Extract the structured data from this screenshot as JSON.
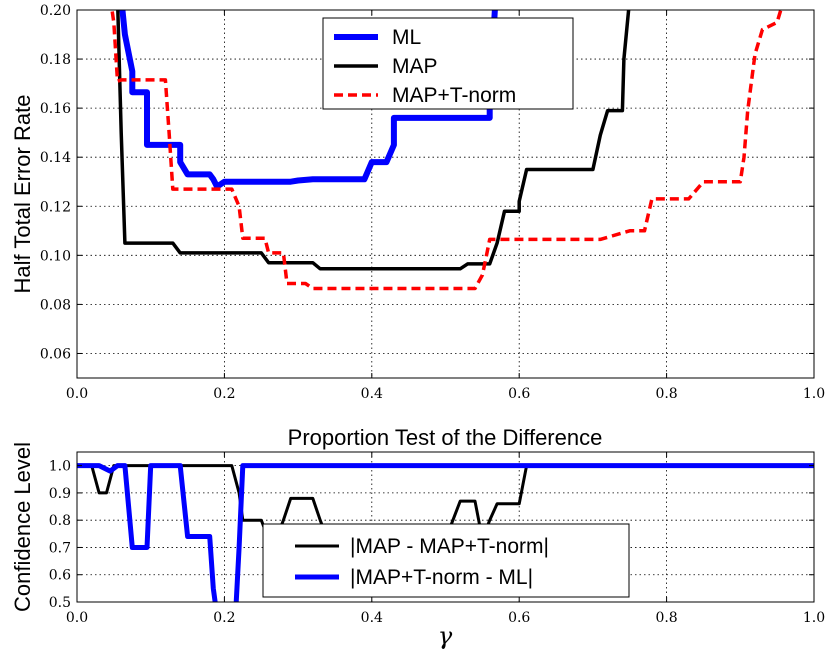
{
  "chart_data": [
    {
      "type": "line",
      "title": "",
      "xlabel": "",
      "ylabel": "Half Total Error Rate",
      "xlim": [
        0.0,
        1.0
      ],
      "ylim": [
        0.05,
        0.2
      ],
      "grid": true,
      "legend_position": "top-center",
      "xticks": [
        "0.0",
        "0.2",
        "0.4",
        "0.6",
        "0.8",
        "1.0"
      ],
      "yticks": [
        "0.06",
        "0.08",
        "0.10",
        "0.12",
        "0.14",
        "0.16",
        "0.18",
        "0.20"
      ],
      "series": [
        {
          "name": "ML",
          "color": "#0000ff",
          "style": "solid",
          "width": 6,
          "x": [
            0.06,
            0.065,
            0.075,
            0.075,
            0.095,
            0.095,
            0.115,
            0.13,
            0.14,
            0.14,
            0.15,
            0.17,
            0.18,
            0.185,
            0.19,
            0.2,
            0.22,
            0.24,
            0.26,
            0.28,
            0.29,
            0.3,
            0.32,
            0.36,
            0.39,
            0.4,
            0.41,
            0.42,
            0.43,
            0.43,
            0.56,
            0.56,
            0.565,
            0.568
          ],
          "y": [
            0.205,
            0.19,
            0.175,
            0.1665,
            0.1665,
            0.145,
            0.145,
            0.145,
            0.145,
            0.138,
            0.133,
            0.133,
            0.133,
            0.131,
            0.128,
            0.13,
            0.13,
            0.13,
            0.13,
            0.13,
            0.13,
            0.1305,
            0.131,
            0.131,
            0.131,
            0.138,
            0.138,
            0.138,
            0.145,
            0.156,
            0.156,
            0.16,
            0.19,
            0.205
          ]
        },
        {
          "name": "MAP",
          "color": "#000000",
          "style": "solid",
          "width": 3.5,
          "x": [
            0.055,
            0.06,
            0.065,
            0.13,
            0.14,
            0.25,
            0.26,
            0.32,
            0.33,
            0.52,
            0.53,
            0.56,
            0.57,
            0.58,
            0.6,
            0.6,
            0.61,
            0.62,
            0.7,
            0.71,
            0.72,
            0.74,
            0.742,
            0.75
          ],
          "y": [
            0.205,
            0.15,
            0.105,
            0.105,
            0.101,
            0.101,
            0.097,
            0.097,
            0.0945,
            0.0945,
            0.0965,
            0.0965,
            0.105,
            0.118,
            0.118,
            0.122,
            0.135,
            0.135,
            0.135,
            0.149,
            0.159,
            0.159,
            0.18,
            0.205
          ]
        },
        {
          "name": "MAP+T-norm",
          "color": "#ff0000",
          "style": "dashed",
          "width": 3.5,
          "x": [
            0.045,
            0.05,
            0.055,
            0.06,
            0.12,
            0.125,
            0.13,
            0.21,
            0.22,
            0.225,
            0.255,
            0.26,
            0.28,
            0.285,
            0.31,
            0.32,
            0.54,
            0.55,
            0.555,
            0.56,
            0.7,
            0.71,
            0.75,
            0.76,
            0.77,
            0.78,
            0.82,
            0.83,
            0.85,
            0.9,
            0.905,
            0.91,
            0.92,
            0.93,
            0.95,
            0.96
          ],
          "y": [
            0.205,
            0.195,
            0.171,
            0.1715,
            0.1715,
            0.15,
            0.127,
            0.127,
            0.12,
            0.107,
            0.107,
            0.101,
            0.101,
            0.0885,
            0.0885,
            0.0865,
            0.0865,
            0.092,
            0.099,
            0.1065,
            0.1065,
            0.1065,
            0.11,
            0.11,
            0.11,
            0.123,
            0.123,
            0.123,
            0.13,
            0.13,
            0.14,
            0.159,
            0.182,
            0.192,
            0.195,
            0.205
          ]
        }
      ]
    },
    {
      "type": "line",
      "title": "Proportion Test of the Difference",
      "xlabel": "γ",
      "ylabel": "Confidence Level",
      "xlim": [
        0.0,
        1.0
      ],
      "ylim": [
        0.5,
        1.05
      ],
      "grid": true,
      "legend_position": "bottom-left",
      "xticks": [
        "0.0",
        "0.2",
        "0.4",
        "0.6",
        "0.8",
        "1.0"
      ],
      "yticks": [
        "0.5",
        "0.6",
        "0.7",
        "0.8",
        "0.9",
        "1.0"
      ],
      "series": [
        {
          "name": "|MAP - MAP+T-norm|",
          "color": "#000000",
          "style": "solid",
          "width": 3,
          "x": [
            0.0,
            0.02,
            0.03,
            0.04,
            0.05,
            0.06,
            0.21,
            0.22,
            0.225,
            0.23,
            0.25,
            0.26,
            0.27,
            0.28,
            0.29,
            0.32,
            0.33,
            0.34,
            0.36,
            0.5,
            0.51,
            0.52,
            0.54,
            0.55,
            0.56,
            0.57,
            0.6,
            0.61,
            0.62,
            1.0
          ],
          "y": [
            1.0,
            1.0,
            0.9,
            0.9,
            1.0,
            1.0,
            1.0,
            0.9,
            0.8,
            0.8,
            0.8,
            0.73,
            0.73,
            0.8,
            0.88,
            0.88,
            0.8,
            0.73,
            0.73,
            0.73,
            0.8,
            0.87,
            0.87,
            0.73,
            0.8,
            0.86,
            0.86,
            1.0,
            1.0,
            1.0
          ]
        },
        {
          "name": "|MAP+T-norm - ML|",
          "color": "#0000ff",
          "style": "solid",
          "width": 5,
          "x": [
            0.0,
            0.03,
            0.045,
            0.055,
            0.065,
            0.07,
            0.075,
            0.095,
            0.1,
            0.105,
            0.14,
            0.145,
            0.15,
            0.18,
            0.185,
            0.19,
            0.2,
            0.21,
            0.215,
            0.22,
            0.225,
            1.0
          ],
          "y": [
            1.0,
            1.0,
            0.98,
            1.0,
            1.0,
            0.85,
            0.7,
            0.7,
            1.0,
            1.0,
            1.0,
            0.87,
            0.74,
            0.74,
            0.55,
            0.45,
            0.4,
            0.4,
            0.45,
            0.7,
            1.0,
            1.0
          ]
        }
      ]
    }
  ]
}
